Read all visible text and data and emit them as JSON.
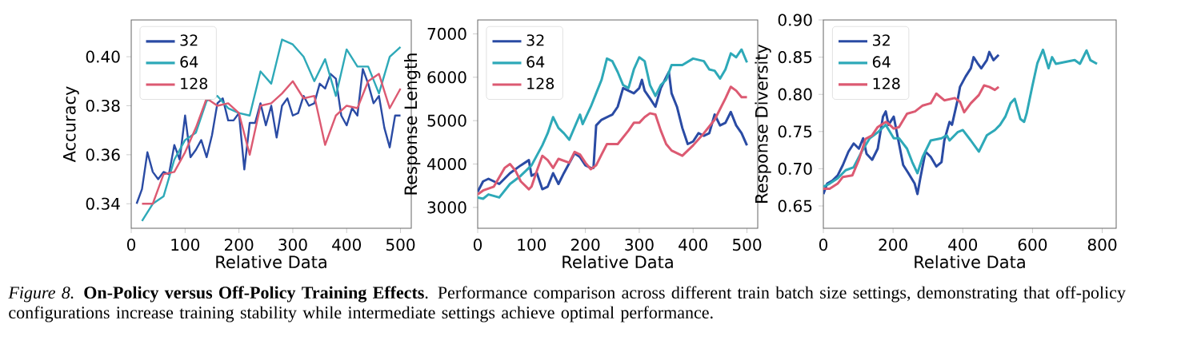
{
  "chart_data": [
    {
      "type": "line",
      "xlabel": "Relative Data",
      "ylabel": "Accuracy",
      "xlim": [
        0,
        520
      ],
      "ylim": [
        0.33,
        0.415
      ],
      "xticks": [
        0,
        100,
        200,
        300,
        400,
        500
      ],
      "yticks": [
        0.34,
        0.36,
        0.38,
        {
          "value": 0.4,
          "label": "0.40"
        }
      ],
      "legend": "top left",
      "marker": "none",
      "line_style": "solid",
      "annotations": [
        "*Figure 8.* **On-Policy versus Off-Policy Training Effects**. Performance comparison across different train batch size settings, demonstrating that off-policy configurations increase training stability while intermediate settings achieve optimal performance."
      ],
      "series": [
        {
          "name": "32",
          "color": "#2a4ba4",
          "x": [
            10,
            20,
            30,
            40,
            50,
            60,
            70,
            80,
            90,
            100,
            110,
            120,
            130,
            140,
            150,
            160,
            170,
            180,
            190,
            200,
            210,
            220,
            230,
            240,
            250,
            260,
            270,
            280,
            290,
            300,
            310,
            320,
            330,
            340,
            350,
            360,
            370,
            380,
            390,
            400,
            410,
            420,
            430,
            440,
            450,
            460,
            470,
            480,
            490,
            500
          ],
          "values": [
            0.34,
            0.346,
            0.361,
            0.353,
            0.35,
            0.353,
            0.352,
            0.364,
            0.358,
            0.376,
            0.359,
            0.362,
            0.366,
            0.359,
            0.368,
            0.381,
            0.383,
            0.374,
            0.374,
            0.377,
            0.354,
            0.373,
            0.373,
            0.381,
            0.372,
            0.38,
            0.367,
            0.38,
            0.383,
            0.376,
            0.377,
            0.384,
            0.38,
            0.381,
            0.389,
            0.387,
            0.393,
            0.391,
            0.376,
            0.372,
            0.379,
            0.376,
            0.395,
            0.389,
            0.381,
            0.384,
            0.371,
            0.363,
            0.376,
            0.376
          ]
        },
        {
          "name": "64",
          "color": "#2ea9b8",
          "x": [
            20,
            40,
            60,
            80,
            100,
            120,
            140,
            160,
            180,
            200,
            220,
            240,
            260,
            280,
            300,
            320,
            340,
            360,
            380,
            400,
            420,
            440,
            460,
            480,
            500
          ],
          "values": [
            0.333,
            0.34,
            0.343,
            0.358,
            0.366,
            0.369,
            0.382,
            0.384,
            0.379,
            0.377,
            0.376,
            0.394,
            0.389,
            0.407,
            0.405,
            0.4,
            0.39,
            0.399,
            0.384,
            0.403,
            0.396,
            0.396,
            0.385,
            0.4,
            0.404
          ]
        },
        {
          "name": "128",
          "color": "#dc5a72",
          "x": [
            20,
            40,
            60,
            80,
            100,
            120,
            140,
            160,
            180,
            200,
            220,
            240,
            260,
            280,
            300,
            320,
            340,
            360,
            380,
            400,
            420,
            440,
            460,
            480,
            500
          ],
          "values": [
            0.34,
            0.34,
            0.352,
            0.353,
            0.361,
            0.371,
            0.383,
            0.38,
            0.381,
            0.377,
            0.36,
            0.38,
            0.381,
            0.385,
            0.39,
            0.383,
            0.384,
            0.364,
            0.376,
            0.38,
            0.379,
            0.39,
            0.393,
            0.379,
            0.387
          ]
        }
      ]
    },
    {
      "type": "line",
      "xlabel": "Relative Data",
      "ylabel": "Response Length",
      "xlim": [
        0,
        520
      ],
      "ylim": [
        2520,
        7320
      ],
      "xticks": [
        0,
        100,
        200,
        300,
        400,
        500
      ],
      "yticks": [
        3000,
        4000,
        5000,
        6000,
        7000
      ],
      "legend": "top left",
      "marker": "none",
      "line_style": "solid",
      "series": [
        {
          "name": "32",
          "color": "#2a4ba4",
          "x": [
            0,
            10,
            20,
            40,
            60,
            80,
            95,
            100,
            110,
            120,
            130,
            140,
            150,
            160,
            180,
            190,
            200,
            210,
            215,
            220,
            230,
            250,
            260,
            270,
            280,
            290,
            300,
            305,
            310,
            320,
            330,
            340,
            350,
            355,
            360,
            370,
            380,
            390,
            400,
            410,
            420,
            430,
            440,
            450,
            460,
            470,
            480,
            490,
            500
          ],
          "values": [
            3360,
            3600,
            3660,
            3540,
            3790,
            3970,
            4090,
            3730,
            3790,
            3420,
            3480,
            3790,
            3540,
            3790,
            4250,
            4160,
            3970,
            3910,
            3910,
            4890,
            5020,
            5140,
            5320,
            5750,
            5690,
            5630,
            5750,
            5940,
            5690,
            5510,
            5320,
            5750,
            6000,
            6120,
            5630,
            5320,
            4830,
            4460,
            4520,
            4710,
            4650,
            4710,
            5140,
            4890,
            4950,
            5200,
            4890,
            4710,
            4430
          ]
        },
        {
          "name": "64",
          "color": "#2ea9b8",
          "x": [
            0,
            10,
            20,
            40,
            60,
            80,
            90,
            100,
            120,
            130,
            140,
            150,
            160,
            170,
            190,
            195,
            210,
            220,
            230,
            240,
            250,
            260,
            270,
            280,
            290,
            300,
            310,
            320,
            330,
            340,
            350,
            360,
            380,
            400,
            420,
            430,
            440,
            450,
            460,
            470,
            480,
            490,
            500
          ],
          "values": [
            3230,
            3200,
            3300,
            3230,
            3540,
            3730,
            3850,
            3970,
            4430,
            4710,
            5080,
            4830,
            4710,
            4560,
            5140,
            4920,
            5320,
            5630,
            5940,
            6430,
            6370,
            6120,
            5820,
            5750,
            6180,
            6460,
            6370,
            5820,
            5570,
            5820,
            5940,
            6280,
            6280,
            6430,
            6370,
            6180,
            6150,
            5970,
            6180,
            6550,
            6460,
            6640,
            6340
          ]
        },
        {
          "name": "128",
          "color": "#dc5a72",
          "x": [
            0,
            10,
            30,
            50,
            60,
            70,
            80,
            95,
            100,
            110,
            120,
            130,
            140,
            150,
            170,
            180,
            190,
            200,
            210,
            220,
            230,
            240,
            260,
            280,
            290,
            300,
            310,
            320,
            330,
            340,
            350,
            360,
            380,
            400,
            420,
            440,
            460,
            470,
            480,
            490,
            500
          ],
          "values": [
            3300,
            3390,
            3480,
            3910,
            4000,
            3850,
            3600,
            3420,
            3480,
            3850,
            4190,
            4090,
            3910,
            4120,
            4030,
            4280,
            4220,
            4030,
            3880,
            3970,
            4220,
            4460,
            4460,
            4770,
            4950,
            4950,
            5080,
            5170,
            5140,
            4770,
            4460,
            4310,
            4190,
            4430,
            4710,
            5020,
            5510,
            5780,
            5690,
            5540,
            5540
          ]
        }
      ]
    },
    {
      "type": "line",
      "xlabel": "Relative Data",
      "ylabel": "Response Diversity",
      "xlim": [
        0,
        840
      ],
      "ylim": [
        0.62,
        0.9
      ],
      "xticks": [
        0,
        200,
        400,
        600,
        800
      ],
      "yticks": [
        0.65,
        {
          "value": 0.7,
          "label": "0.70"
        },
        0.75,
        {
          "value": 0.8,
          "label": "0.80"
        },
        0.85,
        {
          "value": 0.9,
          "label": "0.90"
        }
      ],
      "legend": "top left",
      "marker": "none",
      "line_style": "solid",
      "series": [
        {
          "name": "32",
          "color": "#2a4ba4",
          "x": [
            0,
            11,
            26,
            41,
            56,
            72,
            87,
            102,
            114,
            124,
            140,
            156,
            171,
            179,
            187,
            202,
            214,
            229,
            244,
            262,
            270,
            278,
            293,
            308,
            324,
            339,
            347,
            362,
            369,
            385,
            392,
            408,
            423,
            431,
            442,
            453,
            469,
            476,
            488,
            503
          ],
          "values": [
            0.666,
            0.68,
            0.684,
            0.691,
            0.705,
            0.723,
            0.734,
            0.727,
            0.741,
            0.72,
            0.712,
            0.727,
            0.77,
            0.777,
            0.759,
            0.77,
            0.741,
            0.705,
            0.694,
            0.68,
            0.666,
            0.687,
            0.723,
            0.716,
            0.703,
            0.709,
            0.738,
            0.763,
            0.759,
            0.792,
            0.81,
            0.824,
            0.835,
            0.85,
            0.842,
            0.835,
            0.846,
            0.857,
            0.846,
            0.853
          ]
        },
        {
          "name": "64",
          "color": "#2ea9b8",
          "x": [
            0,
            18,
            41,
            64,
            87,
            110,
            133,
            156,
            179,
            202,
            217,
            240,
            255,
            270,
            285,
            308,
            339,
            354,
            362,
            385,
            400,
            423,
            446,
            469,
            492,
            507,
            522,
            537,
            549,
            565,
            576,
            583,
            599,
            614,
            630,
            646,
            656,
            667,
            698,
            721,
            736,
            755,
            766,
            785
          ],
          "values": [
            0.676,
            0.68,
            0.687,
            0.698,
            0.702,
            0.723,
            0.741,
            0.749,
            0.759,
            0.741,
            0.741,
            0.727,
            0.709,
            0.694,
            0.716,
            0.738,
            0.741,
            0.745,
            0.738,
            0.749,
            0.752,
            0.738,
            0.723,
            0.745,
            0.752,
            0.759,
            0.77,
            0.788,
            0.794,
            0.767,
            0.763,
            0.774,
            0.81,
            0.842,
            0.86,
            0.835,
            0.85,
            0.841,
            0.844,
            0.846,
            0.841,
            0.859,
            0.846,
            0.841
          ]
        },
        {
          "name": "128",
          "color": "#dc5a72",
          "x": [
            0,
            18,
            41,
            56,
            83,
            102,
            121,
            140,
            156,
            179,
            186,
            202,
            217,
            240,
            263,
            285,
            308,
            324,
            347,
            377,
            392,
            404,
            423,
            446,
            461,
            476,
            492,
            503
          ],
          "values": [
            0.673,
            0.673,
            0.68,
            0.689,
            0.691,
            0.712,
            0.74,
            0.745,
            0.756,
            0.763,
            0.761,
            0.754,
            0.756,
            0.774,
            0.777,
            0.785,
            0.788,
            0.801,
            0.792,
            0.795,
            0.79,
            0.776,
            0.788,
            0.799,
            0.812,
            0.81,
            0.806,
            0.81
          ]
        }
      ]
    }
  ]
}
